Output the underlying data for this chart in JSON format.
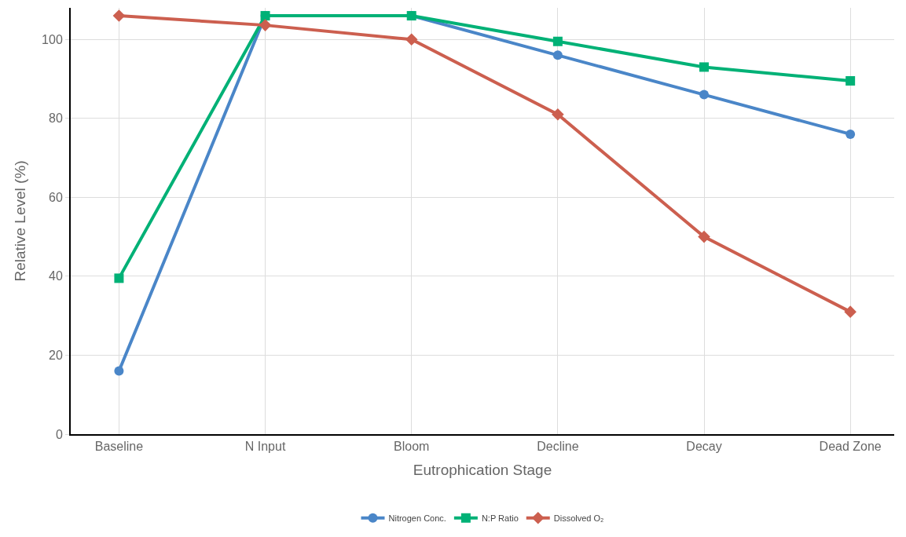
{
  "chart_data": {
    "type": "line",
    "xlabel": "Eutrophication Stage",
    "ylabel": "Relative Level (%)",
    "categories": [
      "Baseline",
      "N Input",
      "Bloom",
      "Decline",
      "Decay",
      "Dead Zone"
    ],
    "series": [
      {
        "name": "Nitrogen Conc.",
        "color": "#4a86c8",
        "marker": "circle",
        "values": [
          16,
          106,
          106,
          96,
          86,
          76
        ]
      },
      {
        "name": "N:P Ratio",
        "color": "#00b176",
        "marker": "square",
        "values": [
          39.5,
          106,
          106,
          99.5,
          93,
          89.5
        ]
      },
      {
        "name": "Dissolved O₂",
        "color": "#cc5f4f",
        "marker": "diamond",
        "values": [
          106,
          103.6,
          100,
          81,
          50,
          31
        ]
      }
    ],
    "ylim": [
      0,
      108
    ],
    "yticks": [
      0,
      20,
      40,
      60,
      80,
      100
    ],
    "grid": true,
    "legend": "bottom",
    "line_style": "solid"
  }
}
